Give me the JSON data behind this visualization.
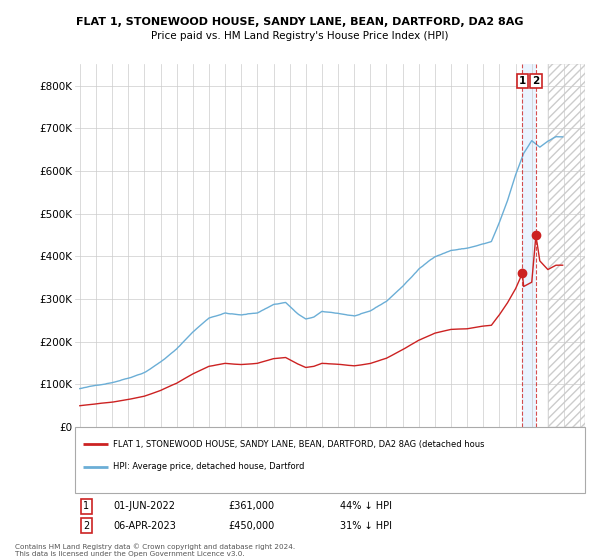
{
  "title1": "FLAT 1, STONEWOOD HOUSE, SANDY LANE, BEAN, DARTFORD, DA2 8AG",
  "title2": "Price paid vs. HM Land Registry's House Price Index (HPI)",
  "hpi_color": "#6baed6",
  "price_color": "#cc2222",
  "dashed_line_color": "#cc2222",
  "background_color": "#ffffff",
  "grid_color": "#cccccc",
  "ylim": [
    0,
    850000
  ],
  "yticks": [
    0,
    100000,
    200000,
    300000,
    400000,
    500000,
    600000,
    700000,
    800000
  ],
  "ytick_labels": [
    "£0",
    "£100K",
    "£200K",
    "£300K",
    "£400K",
    "£500K",
    "£600K",
    "£700K",
    "£800K"
  ],
  "xlim_start": 1994.7,
  "xlim_end": 2026.3,
  "xticks": [
    1995,
    1996,
    1997,
    1998,
    1999,
    2000,
    2001,
    2002,
    2003,
    2004,
    2005,
    2006,
    2007,
    2008,
    2009,
    2010,
    2011,
    2012,
    2013,
    2014,
    2015,
    2016,
    2017,
    2018,
    2019,
    2020,
    2021,
    2022,
    2023,
    2024,
    2025,
    2026
  ],
  "legend_label_red": "FLAT 1, STONEWOOD HOUSE, SANDY LANE, BEAN, DARTFORD, DA2 8AG (detached hous",
  "legend_label_blue": "HPI: Average price, detached house, Dartford",
  "transaction1_date": 2022.42,
  "transaction1_price": 361000,
  "transaction2_date": 2023.26,
  "transaction2_price": 450000,
  "shade_color": "#ddeeff",
  "table_rows": [
    {
      "num": "1",
      "date": "01-JUN-2022",
      "price": "£361,000",
      "hpi": "44% ↓ HPI"
    },
    {
      "num": "2",
      "date": "06-APR-2023",
      "price": "£450,000",
      "hpi": "31% ↓ HPI"
    }
  ],
  "footer": "Contains HM Land Registry data © Crown copyright and database right 2024.\nThis data is licensed under the Open Government Licence v3.0."
}
